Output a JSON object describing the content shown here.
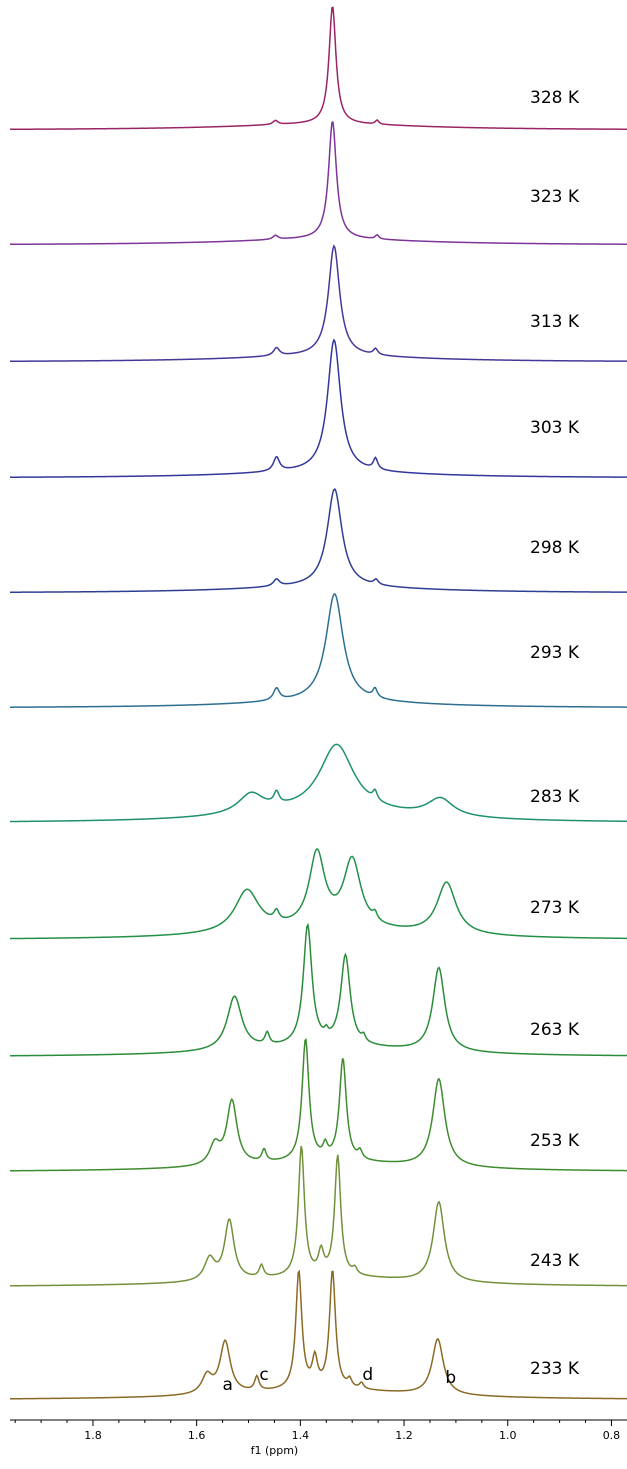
{
  "chart_data": {
    "type": "line",
    "title": "",
    "xlabel": "f1 (ppm)",
    "ylabel": "",
    "x_reversed": true,
    "xlim": [
      1.96,
      0.77
    ],
    "x_ticks": [
      1.8,
      1.6,
      1.4,
      1.2,
      1.0,
      0.8
    ],
    "x_tick_labels": [
      "1.8",
      "1.6",
      "1.4",
      "1.2",
      "1.0",
      "0.8"
    ],
    "grid": false,
    "legend": "none",
    "series": [
      {
        "name": "328 K",
        "color": "#9a2466",
        "baseline": 0.0,
        "peaks": [
          [
            1.338,
            118,
            0.008
          ],
          [
            1.448,
            4,
            0.006
          ],
          [
            1.252,
            4,
            0.004
          ]
        ]
      },
      {
        "name": "323 K",
        "color": "#7e3499",
        "baseline": 0.0,
        "peaks": [
          [
            1.338,
            118,
            0.009
          ],
          [
            1.448,
            4,
            0.006
          ],
          [
            1.252,
            4,
            0.004
          ]
        ]
      },
      {
        "name": "313 K",
        "color": "#42389a",
        "baseline": 0.0,
        "peaks": [
          [
            1.335,
            110,
            0.013
          ],
          [
            1.446,
            8,
            0.007
          ],
          [
            1.255,
            6,
            0.005
          ]
        ]
      },
      {
        "name": "303 K",
        "color": "#33379a",
        "baseline": 0.0,
        "peaks": [
          [
            1.335,
            132,
            0.015
          ],
          [
            1.446,
            14,
            0.007
          ],
          [
            1.255,
            11,
            0.005
          ]
        ]
      },
      {
        "name": "298 K",
        "color": "#2e3f92",
        "baseline": 0.0,
        "peaks": [
          [
            1.334,
            98,
            0.017
          ],
          [
            1.446,
            7,
            0.007
          ],
          [
            1.254,
            5,
            0.005
          ]
        ]
      },
      {
        "name": "293 K",
        "color": "#2c6f92",
        "baseline": 0.0,
        "peaks": [
          [
            1.334,
            108,
            0.02
          ],
          [
            1.446,
            12,
            0.007
          ],
          [
            1.256,
            9,
            0.005
          ]
        ]
      },
      {
        "name": "283 K",
        "color": "#1f9070",
        "baseline": 0.0,
        "peaks": [
          [
            1.33,
            68,
            0.04
          ],
          [
            1.495,
            20,
            0.03
          ],
          [
            1.13,
            18,
            0.03
          ],
          [
            1.446,
            12,
            0.006
          ],
          [
            1.256,
            9,
            0.005
          ]
        ]
      },
      {
        "name": "273 K",
        "color": "#239048",
        "baseline": 0.0,
        "peaks": [
          [
            1.368,
            74,
            0.018
          ],
          [
            1.3,
            68,
            0.02
          ],
          [
            1.503,
            42,
            0.028
          ],
          [
            1.118,
            52,
            0.022
          ],
          [
            1.446,
            10,
            0.006
          ],
          [
            1.256,
            7,
            0.005
          ]
        ]
      },
      {
        "name": "263 K",
        "color": "#2a8d3a",
        "baseline": 0.0,
        "peaks": [
          [
            1.386,
            120,
            0.01
          ],
          [
            1.313,
            90,
            0.011
          ],
          [
            1.527,
            54,
            0.017
          ],
          [
            1.133,
            84,
            0.014
          ],
          [
            1.464,
            12,
            0.005
          ],
          [
            1.35,
            6,
            0.004
          ],
          [
            1.278,
            6,
            0.004
          ]
        ]
      },
      {
        "name": "253 K",
        "color": "#3f8c2f",
        "baseline": 0.0,
        "peaks": [
          [
            1.39,
            122,
            0.008
          ],
          [
            1.318,
            102,
            0.008
          ],
          [
            1.532,
            64,
            0.012
          ],
          [
            1.565,
            20,
            0.012
          ],
          [
            1.133,
            88,
            0.014
          ],
          [
            1.47,
            12,
            0.005
          ],
          [
            1.352,
            12,
            0.005
          ],
          [
            1.285,
            8,
            0.005
          ]
        ]
      },
      {
        "name": "243 K",
        "color": "#73903b",
        "baseline": 0.0,
        "peaks": [
          [
            1.398,
            130,
            0.007
          ],
          [
            1.328,
            120,
            0.007
          ],
          [
            1.537,
            60,
            0.011
          ],
          [
            1.575,
            22,
            0.012
          ],
          [
            1.133,
            80,
            0.013
          ],
          [
            1.475,
            12,
            0.005
          ],
          [
            1.36,
            22,
            0.006
          ],
          [
            1.295,
            6,
            0.005
          ]
        ]
      },
      {
        "name": "233 K",
        "color": "#8a6a25",
        "baseline": 0.0,
        "peaks": [
          [
            1.403,
            118,
            0.007
          ],
          [
            1.338,
            118,
            0.007
          ],
          [
            1.545,
            52,
            0.012
          ],
          [
            1.58,
            18,
            0.012
          ],
          [
            1.135,
            56,
            0.013
          ],
          [
            1.484,
            14,
            0.005
          ],
          [
            1.372,
            28,
            0.006
          ],
          [
            1.305,
            8,
            0.005
          ],
          [
            1.282,
            6,
            0.005
          ]
        ]
      }
    ],
    "peak_annotations": [
      {
        "label": "a",
        "x": 1.54
      },
      {
        "label": "c",
        "x": 1.47
      },
      {
        "label": "d",
        "x": 1.27
      },
      {
        "label": "b",
        "x": 1.11
      }
    ]
  }
}
